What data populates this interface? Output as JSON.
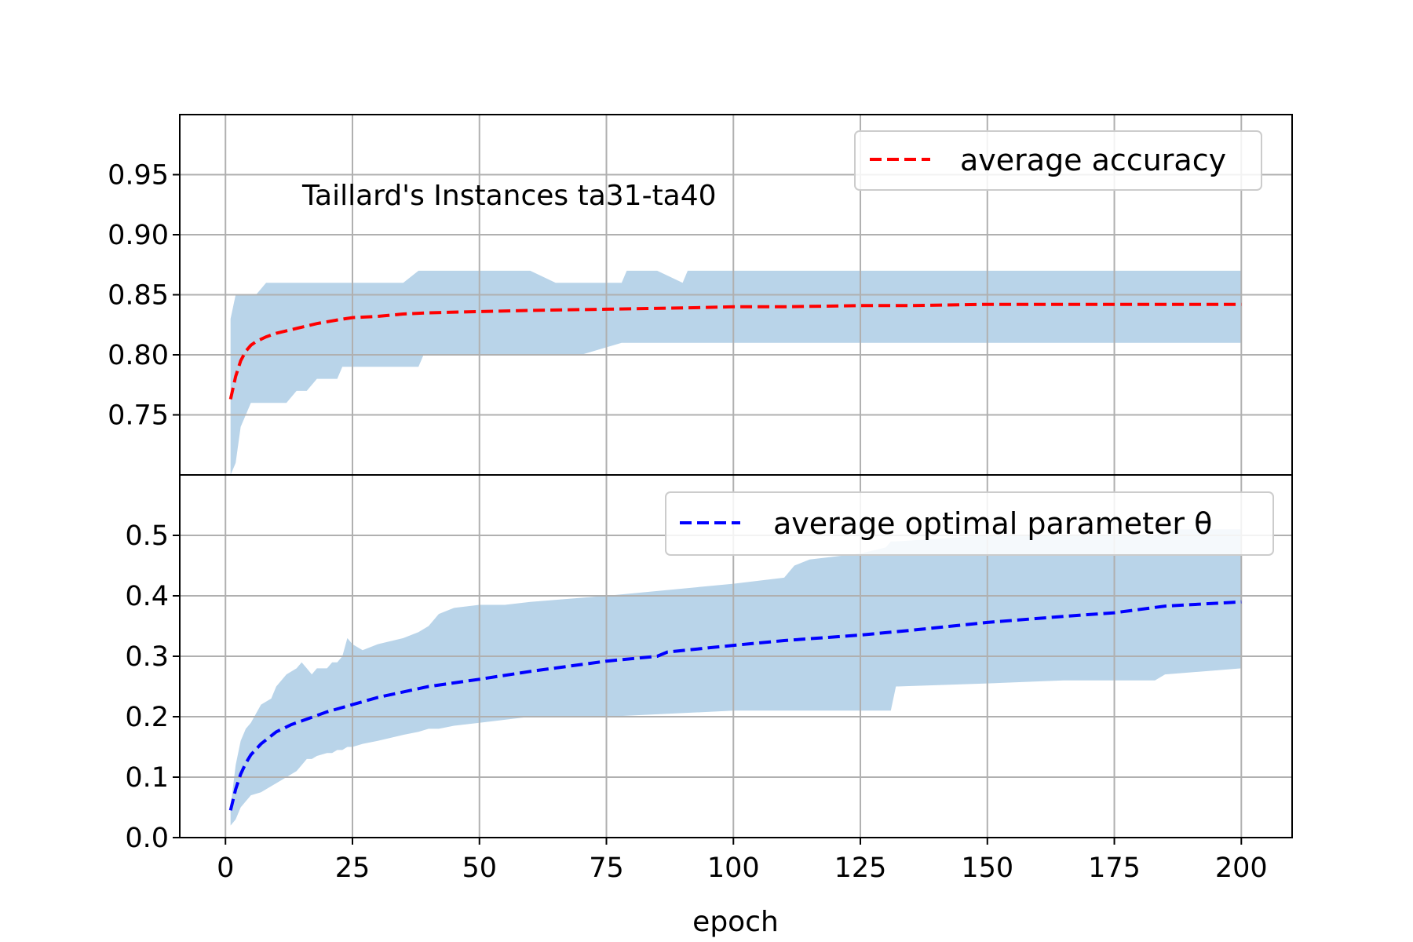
{
  "chart_data": [
    {
      "type": "line",
      "panel": "top",
      "title": "Taillard's Instances ta31-ta40",
      "xlabel": "",
      "ylabel": "",
      "xlim": [
        -9,
        210
      ],
      "ylim": [
        0.7,
        1.0
      ],
      "grid": true,
      "legend_position": "top-right",
      "yticks": [
        0.75,
        0.8,
        0.85,
        0.9,
        0.95
      ],
      "ytick_labels": [
        "0.75",
        "0.80",
        "0.85",
        "0.90",
        "0.95"
      ],
      "series": [
        {
          "name": "average accuracy",
          "color": "#ff0000",
          "style": "dashed",
          "x": [
            1,
            2,
            3,
            4,
            5,
            6,
            8,
            10,
            12,
            15,
            18,
            22,
            25,
            30,
            35,
            40,
            50,
            60,
            75,
            90,
            100,
            110,
            125,
            135,
            150,
            175,
            200
          ],
          "values": [
            0.763,
            0.782,
            0.795,
            0.803,
            0.808,
            0.811,
            0.815,
            0.818,
            0.82,
            0.823,
            0.826,
            0.829,
            0.831,
            0.832,
            0.834,
            0.835,
            0.836,
            0.837,
            0.838,
            0.839,
            0.84,
            0.84,
            0.841,
            0.841,
            0.842,
            0.842,
            0.842
          ]
        }
      ],
      "band": {
        "color": "#b9d4e9",
        "x": [
          1,
          2,
          3,
          4,
          5,
          6,
          8,
          10,
          12,
          14,
          15,
          16,
          18,
          20,
          22,
          23,
          30,
          35,
          38,
          39,
          40,
          45,
          60,
          65,
          70,
          78,
          79,
          80,
          85,
          90,
          91,
          200
        ],
        "upper": [
          0.83,
          0.85,
          0.85,
          0.85,
          0.85,
          0.85,
          0.86,
          0.86,
          0.86,
          0.86,
          0.86,
          0.86,
          0.86,
          0.86,
          0.86,
          0.86,
          0.86,
          0.86,
          0.87,
          0.87,
          0.87,
          0.87,
          0.87,
          0.86,
          0.86,
          0.86,
          0.87,
          0.87,
          0.87,
          0.86,
          0.87,
          0.87
        ],
        "lower": [
          0.7,
          0.71,
          0.74,
          0.75,
          0.76,
          0.76,
          0.76,
          0.76,
          0.76,
          0.77,
          0.77,
          0.77,
          0.78,
          0.78,
          0.78,
          0.79,
          0.79,
          0.79,
          0.79,
          0.8,
          0.8,
          0.8,
          0.8,
          0.8,
          0.8,
          0.81,
          0.81,
          0.81,
          0.81,
          0.81,
          0.81,
          0.81
        ]
      }
    },
    {
      "type": "line",
      "panel": "bottom",
      "title": "",
      "xlabel": "epoch",
      "ylabel": "",
      "xlim": [
        -9,
        210
      ],
      "ylim": [
        0.0,
        0.6
      ],
      "grid": true,
      "legend_position": "top-right",
      "xticks": [
        0,
        25,
        50,
        75,
        100,
        125,
        150,
        175,
        200
      ],
      "xtick_labels": [
        "0",
        "25",
        "50",
        "75",
        "100",
        "125",
        "150",
        "175",
        "200"
      ],
      "yticks": [
        0.0,
        0.1,
        0.2,
        0.3,
        0.4,
        0.5
      ],
      "ytick_labels": [
        "0.0",
        "0.1",
        "0.2",
        "0.3",
        "0.4",
        "0.5"
      ],
      "series": [
        {
          "name": "average optimal parameter θ",
          "color": "#0000ff",
          "style": "dashed",
          "x": [
            1,
            2,
            3,
            4,
            5,
            7,
            10,
            13,
            15,
            20,
            25,
            30,
            40,
            50,
            60,
            75,
            85,
            87,
            100,
            110,
            125,
            135,
            150,
            165,
            175,
            185,
            200
          ],
          "values": [
            0.045,
            0.08,
            0.105,
            0.123,
            0.137,
            0.155,
            0.175,
            0.187,
            0.193,
            0.208,
            0.22,
            0.232,
            0.25,
            0.262,
            0.275,
            0.292,
            0.3,
            0.307,
            0.318,
            0.326,
            0.335,
            0.343,
            0.356,
            0.366,
            0.372,
            0.383,
            0.39
          ]
        }
      ],
      "band": {
        "color": "#b9d4e9",
        "x": [
          1,
          2,
          3,
          4,
          5,
          7,
          9,
          10,
          12,
          14,
          15,
          16,
          17,
          18,
          20,
          21,
          22,
          23,
          24,
          25,
          27,
          30,
          35,
          38,
          40,
          42,
          45,
          50,
          55,
          60,
          75,
          100,
          110,
          112,
          115,
          125,
          130,
          131,
          132,
          150,
          165,
          183,
          185,
          200
        ],
        "upper": [
          0.05,
          0.12,
          0.16,
          0.18,
          0.19,
          0.22,
          0.23,
          0.25,
          0.27,
          0.28,
          0.29,
          0.28,
          0.27,
          0.28,
          0.28,
          0.29,
          0.29,
          0.3,
          0.33,
          0.32,
          0.31,
          0.32,
          0.33,
          0.34,
          0.35,
          0.37,
          0.38,
          0.385,
          0.385,
          0.39,
          0.4,
          0.42,
          0.43,
          0.45,
          0.46,
          0.47,
          0.48,
          0.49,
          0.49,
          0.5,
          0.5,
          0.5,
          0.51,
          0.51
        ],
        "lower": [
          0.02,
          0.03,
          0.05,
          0.06,
          0.07,
          0.075,
          0.085,
          0.09,
          0.1,
          0.11,
          0.12,
          0.13,
          0.13,
          0.135,
          0.14,
          0.14,
          0.145,
          0.145,
          0.15,
          0.15,
          0.155,
          0.16,
          0.17,
          0.175,
          0.18,
          0.18,
          0.185,
          0.19,
          0.195,
          0.2,
          0.2,
          0.21,
          0.21,
          0.21,
          0.21,
          0.21,
          0.21,
          0.21,
          0.25,
          0.255,
          0.26,
          0.26,
          0.27,
          0.28
        ]
      }
    }
  ]
}
